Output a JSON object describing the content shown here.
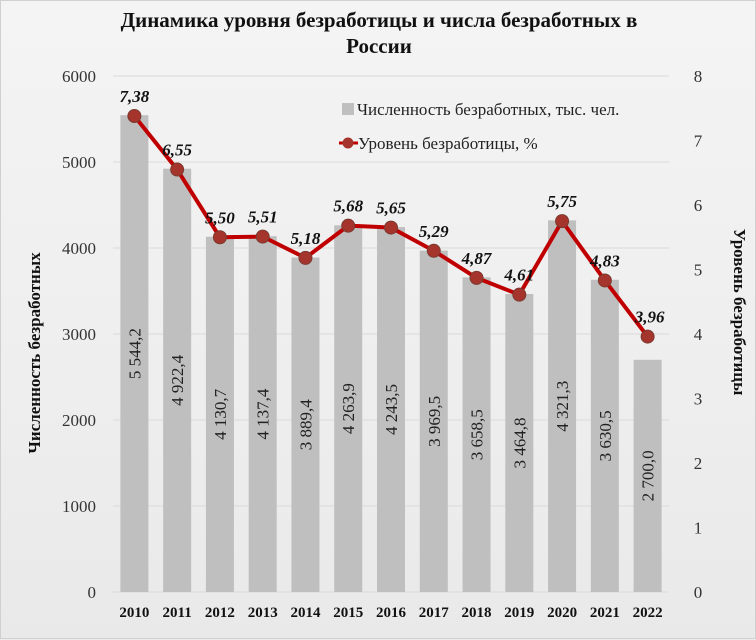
{
  "chart_data": {
    "type": "bar+line",
    "title": "Динамика уровня безработицы и числа безработных в России",
    "categories": [
      "2010",
      "2011",
      "2012",
      "2013",
      "2014",
      "2015",
      "2016",
      "2017",
      "2018",
      "2019",
      "2020",
      "2021",
      "2022"
    ],
    "series": [
      {
        "name": "Численность безработных, тыс. чел.",
        "type": "bar",
        "axis": "left",
        "color": "#bfbfbf",
        "values": [
          5544.2,
          4922.4,
          4130.7,
          4137.4,
          3889.4,
          4263.9,
          4243.5,
          3969.5,
          3658.5,
          3464.8,
          4321.3,
          3630.5,
          2700.0
        ],
        "labels": [
          "5 544,2",
          "4 922,4",
          "4 130,7",
          "4 137,4",
          "3 889,4",
          "4 263,9",
          "4 243,5",
          "3 969,5",
          "3 658,5",
          "3 464,8",
          "4 321,3",
          "3 630,5",
          "2 700,0"
        ]
      },
      {
        "name": "Уровень безработицы, %",
        "type": "line",
        "axis": "right",
        "color": "#c00000",
        "marker_color": "#a5352c",
        "values": [
          7.38,
          6.55,
          5.5,
          5.51,
          5.18,
          5.68,
          5.65,
          5.29,
          4.87,
          4.61,
          5.75,
          4.83,
          3.96
        ],
        "labels": [
          "7,38",
          "6,55",
          "5,50",
          "5,51",
          "5,18",
          "5,68",
          "5,65",
          "5,29",
          "4,87",
          "4,61",
          "5,75",
          "4,83",
          "3,96"
        ]
      }
    ],
    "ylabel": "Численность безработных",
    "y2label": "Уровень безработицы",
    "xlabel": "",
    "ylim": [
      0,
      6000
    ],
    "y2lim": [
      0,
      8
    ],
    "yticks": [
      "0",
      "1000",
      "2000",
      "3000",
      "4000",
      "5000",
      "6000"
    ],
    "y2ticks": [
      "0",
      "1",
      "2",
      "3",
      "4",
      "5",
      "6",
      "7",
      "8"
    ],
    "grid": true,
    "legend_position": "top-right inside"
  },
  "title_line1": "Динамика уровня безработицы и числа безработных в",
  "title_line2": "России"
}
